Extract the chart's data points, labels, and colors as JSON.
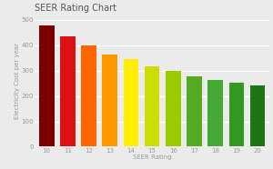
{
  "title": "SEER Rating Chart",
  "xlabel": "SEER Rating",
  "ylabel": "Electricity Cost per year",
  "seer_ratings": [
    10,
    11,
    12,
    13,
    14,
    15,
    16,
    17,
    18,
    19,
    20
  ],
  "values": [
    478,
    435,
    400,
    363,
    345,
    318,
    298,
    278,
    262,
    252,
    240
  ],
  "bar_colors": [
    "#7B0000",
    "#DD1111",
    "#FF6600",
    "#FF9900",
    "#FFEE00",
    "#CCDD00",
    "#99CC00",
    "#55AA22",
    "#44AA33",
    "#339922",
    "#1A7711"
  ],
  "ylim": [
    0,
    520
  ],
  "yticks": [
    0,
    100,
    200,
    300,
    400,
    500
  ],
  "background_color": "#ebebeb",
  "grid_color": "#ffffff",
  "title_fontsize": 7,
  "label_fontsize": 5,
  "tick_fontsize": 5,
  "bar_width": 0.72
}
